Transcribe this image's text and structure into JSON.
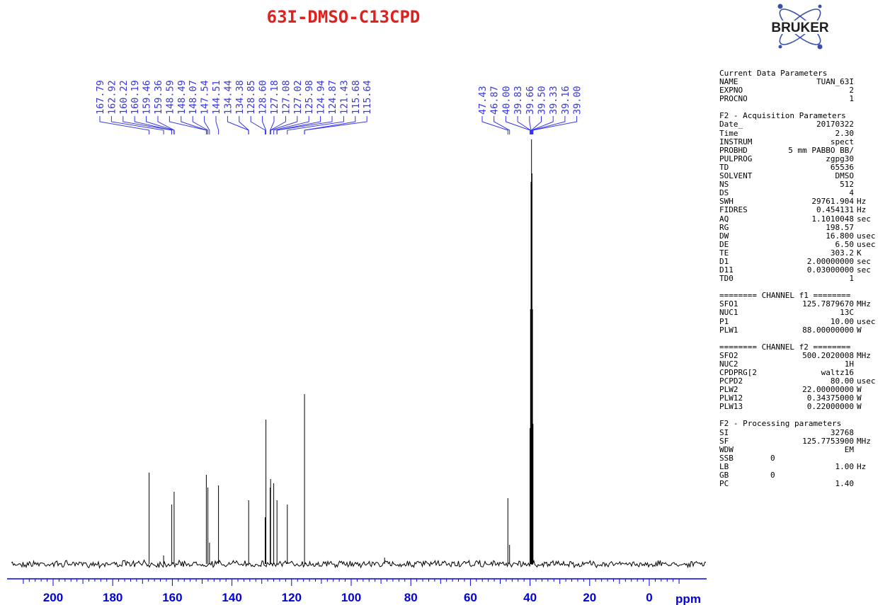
{
  "title": "63I-DMSO-C13CPD",
  "logo_text": "BRUKER",
  "chart_data": {
    "type": "line",
    "title": "63I-DMSO-C13CPD",
    "xlabel": "ppm",
    "xlim": [
      220,
      -12
    ],
    "x_reversed": true,
    "x_ticks": [
      200,
      180,
      160,
      140,
      120,
      100,
      80,
      60,
      40,
      20,
      0
    ],
    "grid": false,
    "peak_labels": [
      "167.79",
      "162.92",
      "160.22",
      "160.19",
      "159.46",
      "159.36",
      "148.59",
      "148.49",
      "148.07",
      "147.54",
      "144.51",
      "134.44",
      "134.38",
      "128.85",
      "128.60",
      "127.18",
      "127.08",
      "127.02",
      "125.98",
      "124.94",
      "124.87",
      "121.43",
      "115.68",
      "115.64",
      "47.43",
      "46.87",
      "40.00",
      "39.83",
      "39.66",
      "39.50",
      "39.33",
      "39.16",
      "39.00"
    ],
    "peaks": [
      {
        "ppm": 167.79,
        "intensity": 0.215
      },
      {
        "ppm": 162.92,
        "intensity": 0.02
      },
      {
        "ppm": 160.2,
        "intensity": 0.14
      },
      {
        "ppm": 159.4,
        "intensity": 0.17
      },
      {
        "ppm": 148.59,
        "intensity": 0.21
      },
      {
        "ppm": 148.07,
        "intensity": 0.18
      },
      {
        "ppm": 147.54,
        "intensity": 0.05
      },
      {
        "ppm": 144.51,
        "intensity": 0.185
      },
      {
        "ppm": 134.4,
        "intensity": 0.15
      },
      {
        "ppm": 128.85,
        "intensity": 0.11
      },
      {
        "ppm": 128.6,
        "intensity": 0.34
      },
      {
        "ppm": 127.18,
        "intensity": 0.18
      },
      {
        "ppm": 127.08,
        "intensity": 0.08
      },
      {
        "ppm": 127.02,
        "intensity": 0.2
      },
      {
        "ppm": 125.98,
        "intensity": 0.19
      },
      {
        "ppm": 124.9,
        "intensity": 0.15
      },
      {
        "ppm": 121.43,
        "intensity": 0.14
      },
      {
        "ppm": 115.66,
        "intensity": 0.4
      },
      {
        "ppm": 88.8,
        "intensity": 0.015
      },
      {
        "ppm": 47.43,
        "intensity": 0.155
      },
      {
        "ppm": 46.87,
        "intensity": 0.045
      },
      {
        "ppm": 40.0,
        "intensity": 0.32
      },
      {
        "ppm": 39.83,
        "intensity": 0.6
      },
      {
        "ppm": 39.66,
        "intensity": 0.9
      },
      {
        "ppm": 39.5,
        "intensity": 1.0
      },
      {
        "ppm": 39.33,
        "intensity": 0.92
      },
      {
        "ppm": 39.16,
        "intensity": 0.6
      },
      {
        "ppm": 39.0,
        "intensity": 0.33
      }
    ]
  },
  "parameters": [
    {
      "heading": "Current Data Parameters",
      "rows": [
        {
          "k": "NAME",
          "v": "TUAN_63I",
          "u": ""
        },
        {
          "k": "EXPNO",
          "v": "2",
          "u": ""
        },
        {
          "k": "PROCNO",
          "v": "1",
          "u": ""
        }
      ]
    },
    {
      "heading": "F2 - Acquisition Parameters",
      "rows": [
        {
          "k": "Date_",
          "v": "20170322",
          "u": ""
        },
        {
          "k": "Time",
          "v": "2.30",
          "u": ""
        },
        {
          "k": "INSTRUM",
          "v": "spect",
          "u": ""
        },
        {
          "k": "PROBHD",
          "v": "5 mm PABBO BB/",
          "u": ""
        },
        {
          "k": "PULPROG",
          "v": "zgpg30",
          "u": ""
        },
        {
          "k": "TD",
          "v": "65536",
          "u": ""
        },
        {
          "k": "SOLVENT",
          "v": "DMSO",
          "u": ""
        },
        {
          "k": "NS",
          "v": "512",
          "u": ""
        },
        {
          "k": "DS",
          "v": "4",
          "u": ""
        },
        {
          "k": "SWH",
          "v": "29761.904",
          "u": "Hz"
        },
        {
          "k": "FIDRES",
          "v": "0.454131",
          "u": "Hz"
        },
        {
          "k": "AQ",
          "v": "1.1010048",
          "u": "sec"
        },
        {
          "k": "RG",
          "v": "198.57",
          "u": ""
        },
        {
          "k": "DW",
          "v": "16.800",
          "u": "usec"
        },
        {
          "k": "DE",
          "v": "6.50",
          "u": "usec"
        },
        {
          "k": "TE",
          "v": "303.2",
          "u": "K"
        },
        {
          "k": "D1",
          "v": "2.00000000",
          "u": "sec"
        },
        {
          "k": "D11",
          "v": "0.03000000",
          "u": "sec"
        },
        {
          "k": "TD0",
          "v": "1",
          "u": ""
        }
      ]
    },
    {
      "heading": "======== CHANNEL f1 ========",
      "rows": [
        {
          "k": "SFO1",
          "v": "125.7879670",
          "u": "MHz"
        },
        {
          "k": "NUC1",
          "v": "13C",
          "u": ""
        },
        {
          "k": "P1",
          "v": "10.00",
          "u": "usec"
        },
        {
          "k": "PLW1",
          "v": "88.00000000",
          "u": "W"
        }
      ]
    },
    {
      "heading": "======== CHANNEL f2 ========",
      "rows": [
        {
          "k": "SFO2",
          "v": "500.2020008",
          "u": "MHz"
        },
        {
          "k": "NUC2",
          "v": "1H",
          "u": ""
        },
        {
          "k": "CPDPRG[2",
          "v": "waltz16",
          "u": ""
        },
        {
          "k": "PCPD2",
          "v": "80.00",
          "u": "usec"
        },
        {
          "k": "PLW2",
          "v": "22.00000000",
          "u": "W"
        },
        {
          "k": "PLW12",
          "v": "0.34375000",
          "u": "W"
        },
        {
          "k": "PLW13",
          "v": "0.22000000",
          "u": "W"
        }
      ]
    },
    {
      "heading": "F2 - Processing parameters",
      "rows": [
        {
          "k": "SI",
          "v": "32768",
          "u": ""
        },
        {
          "k": "SF",
          "v": "125.7753900",
          "u": "MHz"
        },
        {
          "k": "WDW",
          "v": "EM",
          "u": ""
        },
        {
          "k": "SSB",
          "v": "0",
          "u": "",
          "left": true
        },
        {
          "k": "LB",
          "v": "1.00",
          "u": "Hz"
        },
        {
          "k": "GB",
          "v": "0",
          "u": "",
          "left": true
        },
        {
          "k": "PC",
          "v": "1.40",
          "u": ""
        }
      ]
    }
  ]
}
